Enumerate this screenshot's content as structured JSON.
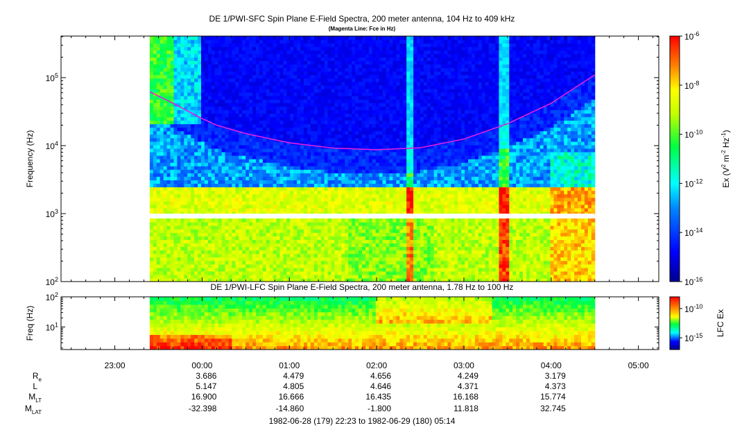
{
  "chart_data": [
    {
      "type": "heatmap",
      "title": "DE 1/PWI-SFC  Spin Plane E-Field Spectra, 200 meter antenna, 104 Hz to 409 kHz",
      "subtitle": "(Magenta Line: Fce in Hz)",
      "ylabel": "Frequency (Hz)",
      "ylim": [
        100,
        409000
      ],
      "y_scale": "log",
      "y_ticks": [
        "10^2",
        "10^3",
        "10^4",
        "10^5"
      ],
      "data_extent_x": [
        "23:24",
        "04:30"
      ],
      "gap_freq_hz": [
        900,
        1000
      ],
      "colorbar": {
        "label": "Ex (V^2 m^-2 Hz^-1)",
        "scale": "log",
        "range": [
          1e-16,
          1e-06
        ],
        "ticks": [
          "10^-6",
          "10^-8",
          "10^-10",
          "10^-12",
          "10^-14",
          "10^-16"
        ]
      },
      "fce_line": {
        "color": "#e020e0",
        "name": "Fce in Hz",
        "points": [
          [
            "23:24",
            62000
          ],
          [
            "23:40",
            42000
          ],
          [
            "00:00",
            25000
          ],
          [
            "00:10",
            20000
          ],
          [
            "00:30",
            15000
          ],
          [
            "01:00",
            11000
          ],
          [
            "01:30",
            9200
          ],
          [
            "02:00",
            8700
          ],
          [
            "02:30",
            9300
          ],
          [
            "03:00",
            12500
          ],
          [
            "03:30",
            21000
          ],
          [
            "04:00",
            42000
          ],
          [
            "04:30",
            110000
          ]
        ]
      },
      "features": [
        {
          "kind": "intense band",
          "freq_hz": [
            1000,
            2500
          ],
          "time": [
            "23:30",
            "04:30"
          ]
        },
        {
          "kind": "broadband burst",
          "time": "03:27"
        },
        {
          "kind": "broadband burst",
          "time": "02:23"
        }
      ]
    },
    {
      "type": "heatmap",
      "title": "DE 1/PWI-LFC  Spin Plane E-Field Spectra, 200 meter antenna, 1.78 Hz to 100 Hz",
      "ylabel": "Freq (Hz)",
      "ylim": [
        1.78,
        100
      ],
      "y_scale": "log",
      "y_ticks": [
        "10^1",
        "10^2"
      ],
      "data_extent_x": [
        "23:24",
        "04:30"
      ],
      "colorbar": {
        "label": "LFC Ex",
        "scale": "log",
        "range": [
          1e-17,
          1e-08
        ],
        "ticks": [
          "10^-10",
          "10^-15"
        ]
      }
    }
  ],
  "x_axis": {
    "range": [
      "22:23",
      "05:14"
    ],
    "ticks": [
      "23:00",
      "00:00",
      "01:00",
      "02:00",
      "03:00",
      "04:00",
      "05:00"
    ]
  },
  "ephemeris": {
    "rows": [
      {
        "label": "R",
        "sub": "e",
        "values": [
          "3.686",
          "4.479",
          "4.656",
          "4.249",
          "3.179"
        ]
      },
      {
        "label": "L",
        "sub": "",
        "values": [
          "5.147",
          "4.805",
          "4.646",
          "4.371",
          "4.373"
        ]
      },
      {
        "label": "M",
        "sub": "LT",
        "values": [
          "16.900",
          "16.666",
          "16.435",
          "16.168",
          "15.774"
        ]
      },
      {
        "label": "M",
        "sub": "LAT",
        "values": [
          "-32.398",
          "-14.860",
          "-1.800",
          "11.818",
          "32.745"
        ]
      }
    ],
    "at_times": [
      "00:00",
      "01:00",
      "02:00",
      "03:00",
      "04:00"
    ]
  },
  "time_range_label": "1982-06-28 (179) 22:23 to 1982-06-29 (180) 05:14"
}
